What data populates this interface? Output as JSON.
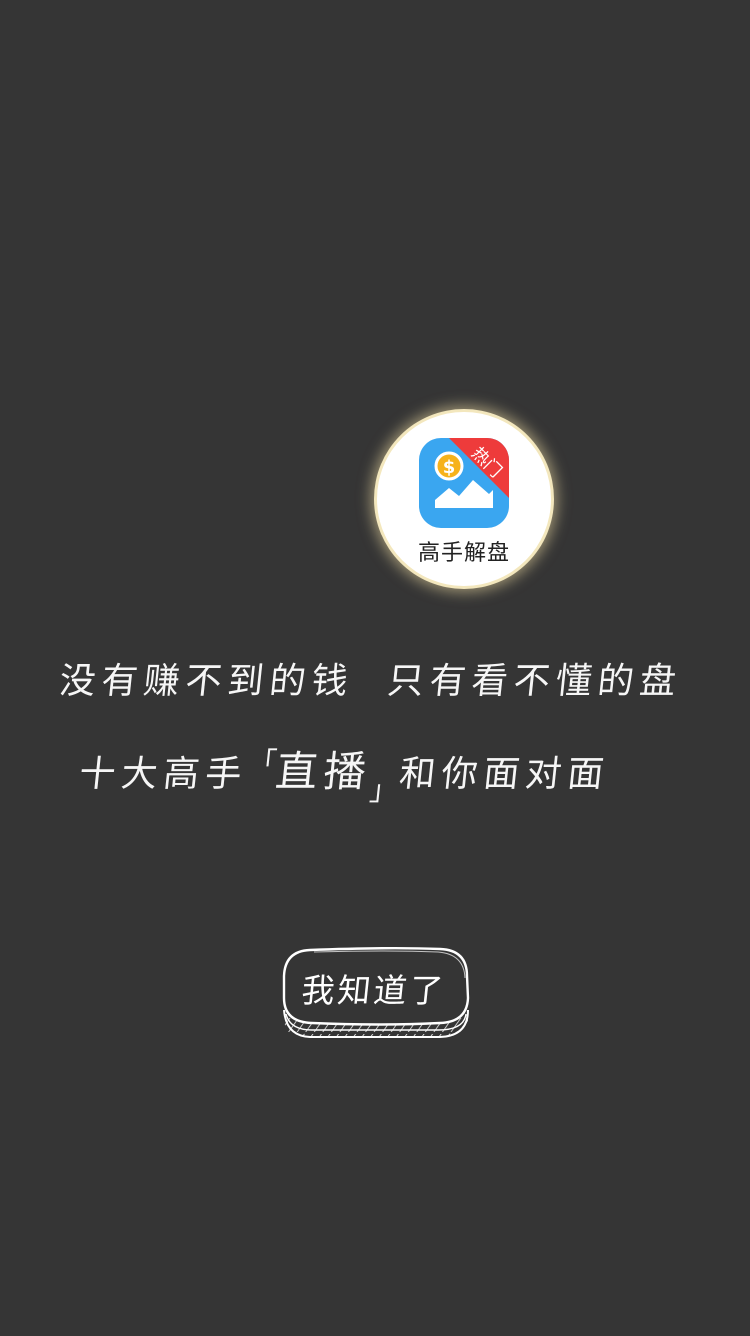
{
  "app": {
    "name": "高手解盘",
    "badge": "热门",
    "icon": "dollar-chart-icon",
    "colors": {
      "icon_blue": "#3aa6f0",
      "badge_red": "#ee3b3b",
      "coin_yellow": "#f6b21b"
    }
  },
  "guide": {
    "line1_part1": "没有赚不到的钱",
    "line1_part2": "只有看不懂的盘",
    "line2_pre": "十大高手",
    "line2_open_bracket": "「",
    "line2_highlight": "直播",
    "line2_close_bracket": "」",
    "line2_post": "和你面对面"
  },
  "button": {
    "label": "我知道了"
  },
  "colors": {
    "background": "#353535",
    "text": "#ffffff"
  }
}
